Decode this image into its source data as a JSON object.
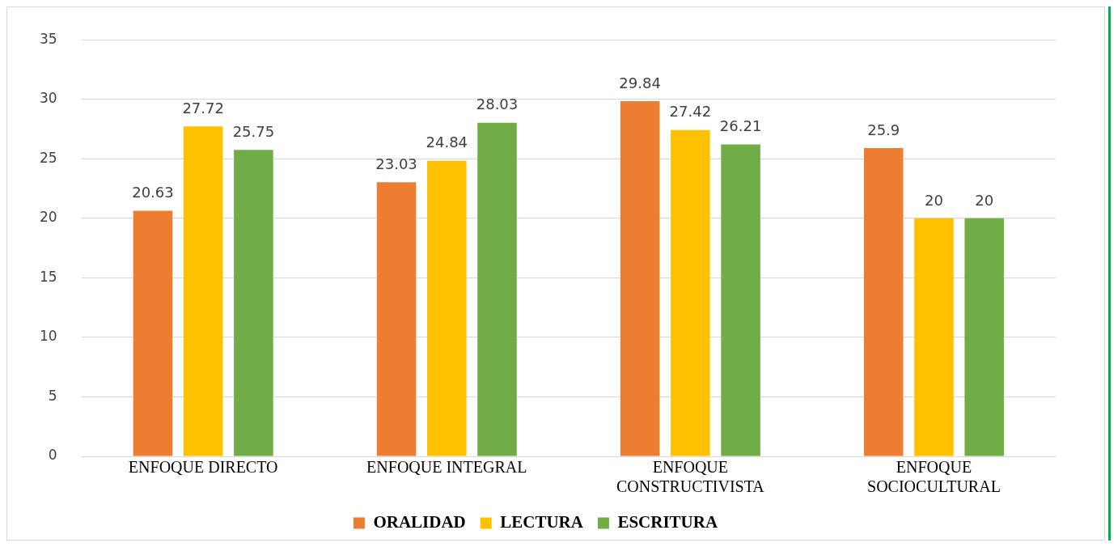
{
  "chart_data": {
    "type": "bar",
    "categories": [
      "ENFOQUE DIRECTO",
      "ENFOQUE INTEGRAL",
      "ENFOQUE CONSTRUCTIVISTA",
      "ENFOQUE SOCIOCULTURAL"
    ],
    "series": [
      {
        "name": "ORALIDAD",
        "color": "#ed7d31",
        "values": [
          20.63,
          23.03,
          29.84,
          25.9
        ]
      },
      {
        "name": "LECTURA",
        "color": "#ffc000",
        "values": [
          27.72,
          24.84,
          27.42,
          20
        ]
      },
      {
        "name": "ESCRITURA",
        "color": "#70ad47",
        "values": [
          25.75,
          28.03,
          26.21,
          20
        ]
      }
    ],
    "ylim": [
      0,
      35
    ],
    "yticks": [
      0,
      5,
      10,
      15,
      20,
      25,
      30,
      35
    ],
    "grid": "y",
    "legend": "bottom",
    "data_labels": true
  }
}
